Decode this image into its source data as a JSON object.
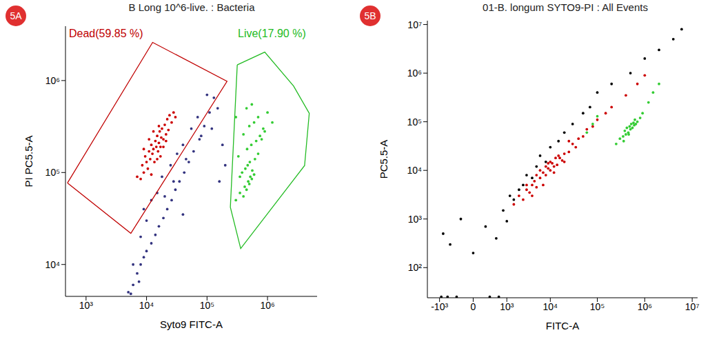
{
  "chart_data": [
    {
      "type": "scatter",
      "title": "B Long 10^6-live. : Bacteria",
      "annotations": [
        "5A"
      ],
      "x_label": "Syto9 FITC-A",
      "y_label": "PI PC5.5-A",
      "log": true,
      "grid": false,
      "tick_labels": true,
      "xlim": [
        457,
        6600000
      ],
      "ylim": [
        4500,
        3900000
      ],
      "xticks": [
        {
          "value": 1000,
          "label": "10³"
        },
        {
          "value": 10000,
          "label": "10⁴"
        },
        {
          "value": 100000,
          "label": "10⁵"
        },
        {
          "value": 1000000,
          "label": "10⁶"
        }
      ],
      "yticks": [
        {
          "value": 10000,
          "label": "10⁴"
        },
        {
          "value": 100000,
          "label": "10⁵"
        },
        {
          "value": 1000000,
          "label": "10⁶"
        }
      ],
      "series": [
        {
          "color": "#33337f",
          "x": [
            5000,
            6000,
            7000,
            8000,
            9000,
            10000,
            12000,
            14000,
            16000,
            19000,
            22000,
            26000,
            30000,
            35000,
            42000,
            50000,
            60000,
            75000,
            90000,
            110000,
            130000,
            6000,
            8000,
            9000,
            10000,
            12000,
            15000,
            18000,
            20000,
            25000,
            28000,
            32000,
            40000,
            45000,
            55000,
            70000,
            80000,
            100000,
            120000,
            150000,
            180000,
            200000,
            160000,
            5500,
            7500,
            40000
          ],
          "y": [
            5000,
            6000,
            8000,
            10000,
            12000,
            14000,
            17000,
            21000,
            26000,
            32000,
            40000,
            50000,
            65000,
            80000,
            100000,
            130000,
            170000,
            230000,
            320000,
            450000,
            650000,
            10000,
            20000,
            40000,
            30000,
            50000,
            60000,
            90000,
            55000,
            120000,
            80000,
            160000,
            200000,
            140000,
            300000,
            400000,
            250000,
            700000,
            300000,
            500000,
            200000,
            120000,
            80000,
            4800,
            6500,
            35000
          ]
        },
        {
          "color": "#cc0000",
          "x": [
            7000,
            8000,
            8500,
            9000,
            9500,
            10000,
            10500,
            11000,
            11500,
            12000,
            12500,
            13000,
            13500,
            14000,
            14500,
            15000,
            15500,
            16000,
            16500,
            17000,
            17500,
            18000,
            19000,
            20000,
            21000,
            22000,
            23000,
            24000,
            26000,
            28000,
            30000,
            9000,
            11000,
            13000,
            15000,
            17000,
            19000,
            21000,
            12000,
            16000
          ],
          "y": [
            90000,
            85000,
            120000,
            100000,
            150000,
            130000,
            110000,
            170000,
            140000,
            200000,
            160000,
            180000,
            130000,
            220000,
            190000,
            250000,
            170000,
            210000,
            280000,
            190000,
            240000,
            300000,
            230000,
            330000,
            260000,
            380000,
            290000,
            420000,
            350000,
            450000,
            400000,
            180000,
            230000,
            280000,
            140000,
            150000,
            190000,
            220000,
            95000,
            320000
          ]
        },
        {
          "color": "#33cc33",
          "x": [
            300000,
            350000,
            400000,
            420000,
            450000,
            480000,
            500000,
            520000,
            550000,
            600000,
            380000,
            430000,
            470000,
            510000,
            560000,
            620000,
            700000,
            330000,
            460000,
            540000,
            650000,
            750000,
            850000,
            400000,
            500000,
            600000,
            700000,
            900000,
            1000000,
            300000,
            450000,
            550000,
            800000,
            1200000,
            350000
          ],
          "y": [
            50000,
            60000,
            55000,
            70000,
            65000,
            80000,
            75000,
            90000,
            85000,
            95000,
            100000,
            110000,
            120000,
            130000,
            105000,
            140000,
            160000,
            150000,
            180000,
            200000,
            220000,
            250000,
            300000,
            260000,
            320000,
            350000,
            400000,
            280000,
            450000,
            400000,
            500000,
            550000,
            230000,
            350000,
            90000
          ]
        }
      ],
      "gates": [
        {
          "label": "Dead(59.85 %)",
          "color": "#c00000",
          "x": [
            493,
            12600,
            214000,
            5500
          ],
          "y": [
            77000,
            2600000,
            980000,
            21800
          ]
        },
        {
          "label": "Live(17.90 %)",
          "color": "#22bb22",
          "x": [
            316000,
            900000,
            2700000,
            4900000,
            4100000,
            360000,
            243000
          ],
          "y": [
            1480000,
            2040000,
            870000,
            440000,
            119000,
            14900,
            42000
          ]
        }
      ]
    },
    {
      "type": "scatter",
      "title": "01-B. longum SYTO9-PI : All Events",
      "annotations": [
        "5B"
      ],
      "x_label": "FITC-A",
      "y_label": "PC5.5-A",
      "log": true,
      "grid": false,
      "tick_labels": true,
      "xlim": [
        -2000,
        13000000
      ],
      "ylim": [
        24,
        12000000
      ],
      "xticks": [
        {
          "value": -1000,
          "label": "-10³"
        },
        0,
        {
          "value": 1000,
          "label": "10³"
        },
        {
          "value": 10000,
          "label": "10⁴"
        },
        {
          "value": 100000,
          "label": "10⁵"
        },
        {
          "value": 1000000,
          "label": "10⁶"
        },
        {
          "value": 10000000,
          "label": "10⁷"
        }
      ],
      "yticks": [
        {
          "value": 100,
          "label": "10²"
        },
        {
          "value": 1000,
          "label": "10³"
        },
        {
          "value": 10000,
          "label": "10⁴"
        },
        {
          "value": 100000,
          "label": "10⁵"
        },
        {
          "value": 1000000,
          "label": "10⁶"
        },
        {
          "value": 10000000,
          "label": "10⁷"
        }
      ],
      "series": [
        {
          "color": "#000000",
          "x": [
            -800,
            -500,
            -200,
            0,
            200,
            500,
            800,
            1000,
            1200,
            1500,
            2000,
            2500,
            3000,
            4000,
            5000,
            6000,
            8000,
            10000,
            15000,
            20000,
            30000,
            50000,
            70000,
            100000,
            200000,
            500000,
            1000000,
            2000000,
            4000000,
            6000000,
            -900,
            -600,
            -300,
            300,
            600
          ],
          "y": [
            500,
            300,
            1000,
            200,
            700,
            400,
            1500,
            900,
            3000,
            2500,
            4000,
            5000,
            8000,
            7000,
            12000,
            20000,
            15000,
            30000,
            40000,
            60000,
            90000,
            150000,
            200000,
            400000,
            600000,
            1000000,
            2000000,
            3000000,
            5000000,
            8000000,
            25,
            25,
            25,
            25,
            25
          ]
        },
        {
          "color": "#cc0000",
          "x": [
            1500,
            2000,
            2500,
            3000,
            3500,
            4000,
            4500,
            5000,
            6000,
            7000,
            8000,
            9000,
            10000,
            11000,
            12000,
            14000,
            16000,
            18000,
            20000,
            25000,
            30000,
            35000,
            40000,
            50000,
            60000,
            80000,
            100000,
            150000,
            200000,
            400000,
            3000,
            5000,
            7000,
            9000,
            12000,
            15000,
            20000,
            6000,
            10000,
            25000,
            700000,
            1000000,
            4000,
            8000,
            13000
          ],
          "y": [
            2000,
            3000,
            2500,
            4000,
            3500,
            5000,
            6000,
            4500,
            7000,
            9000,
            8000,
            11000,
            10000,
            14000,
            12000,
            13000,
            18000,
            16000,
            22000,
            24000,
            35000,
            30000,
            45000,
            50000,
            70000,
            80000,
            110000,
            150000,
            200000,
            350000,
            5000,
            8000,
            5000,
            14000,
            9000,
            20000,
            15000,
            10000,
            15000,
            40000,
            600000,
            900000,
            3000,
            12000,
            18000
          ]
        },
        {
          "color": "#33cc33",
          "x": [
            250000,
            300000,
            350000,
            400000,
            450000,
            500000,
            550000,
            600000,
            650000,
            700000,
            800000,
            900000,
            380000,
            420000,
            480000,
            520000,
            580000,
            620000,
            360000,
            460000,
            1200000,
            1500000,
            2000000,
            60000,
            80000,
            100000
          ],
          "y": [
            35000,
            45000,
            50000,
            55000,
            60000,
            70000,
            75000,
            85000,
            90000,
            100000,
            120000,
            150000,
            65000,
            75000,
            80000,
            90000,
            95000,
            110000,
            40000,
            55000,
            250000,
            400000,
            600000,
            60000,
            90000,
            130000
          ]
        }
      ]
    }
  ]
}
